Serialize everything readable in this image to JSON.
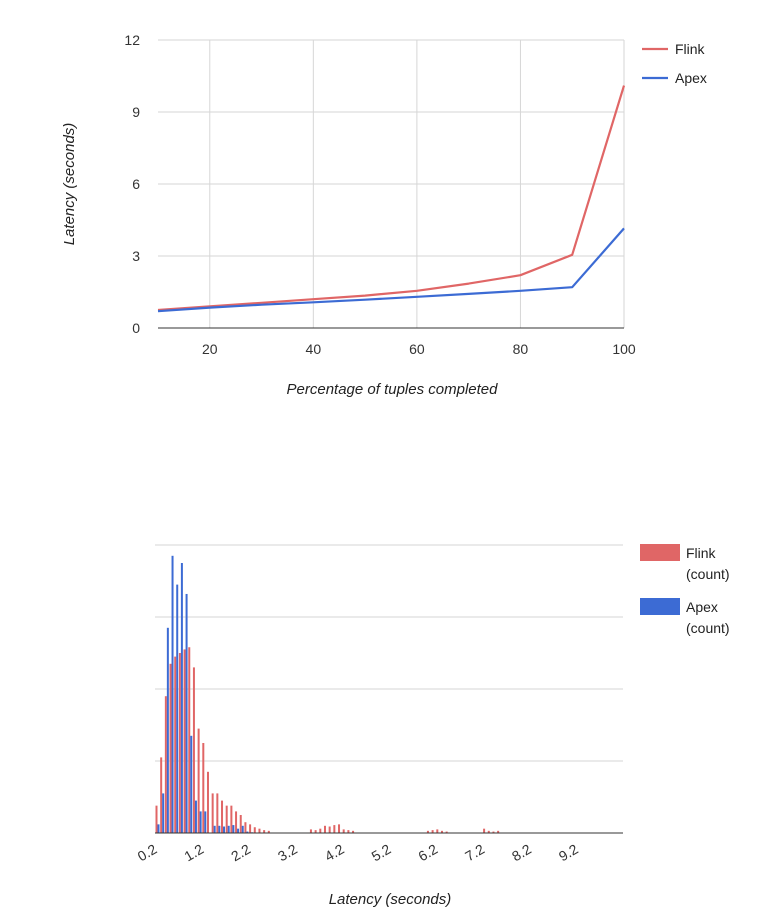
{
  "colors": {
    "flink": "#e06666",
    "apex": "#3c6bd4",
    "grid": "#d6d6d6",
    "baseline": "#333333"
  },
  "chart_data": [
    {
      "type": "line",
      "title": "",
      "xlabel": "Percentage of tuples completed",
      "ylabel": "Latency (seconds)",
      "xlim": [
        10,
        100
      ],
      "ylim": [
        0,
        12
      ],
      "x_ticks": [
        20,
        40,
        60,
        80,
        100
      ],
      "y_ticks": [
        0,
        3,
        6,
        9,
        12
      ],
      "grid": true,
      "legend_position": "right",
      "series": [
        {
          "name": "Flink",
          "color": "#e06666",
          "x": [
            10,
            20,
            30,
            40,
            50,
            60,
            70,
            80,
            90,
            100
          ],
          "y": [
            0.75,
            0.9,
            1.05,
            1.2,
            1.35,
            1.55,
            1.85,
            2.2,
            3.05,
            10.1
          ]
        },
        {
          "name": "Apex",
          "color": "#3c6bd4",
          "x": [
            10,
            20,
            30,
            40,
            50,
            60,
            70,
            80,
            90,
            100
          ],
          "y": [
            0.7,
            0.85,
            0.97,
            1.07,
            1.18,
            1.3,
            1.42,
            1.55,
            1.7,
            4.15
          ]
        }
      ]
    },
    {
      "type": "bar",
      "title": "",
      "xlabel": "Latency (seconds)",
      "ylabel": "",
      "x_ticks": [
        "0.2",
        "1.2",
        "2.2",
        "3.2",
        "4.2",
        "5.2",
        "6.2",
        "7.2",
        "8.2",
        "9.2"
      ],
      "xlim": [
        0.2,
        10.2
      ],
      "ylim": [
        0,
        400
      ],
      "y_gridlines": [
        0,
        100,
        200,
        300,
        400
      ],
      "y_tick_labels_shown": false,
      "grid": true,
      "legend_position": "right",
      "bin_start": 0.2,
      "bin_width": 0.1,
      "series": [
        {
          "name": "Flink\n(count)",
          "color": "#e06666",
          "values": [
            38,
            105,
            190,
            235,
            245,
            250,
            255,
            258,
            230,
            145,
            125,
            85,
            55,
            55,
            45,
            38,
            38,
            30,
            25,
            15,
            12,
            8,
            6,
            4,
            3,
            0,
            0,
            0,
            0,
            0,
            0,
            0,
            0,
            5,
            4,
            6,
            10,
            9,
            11,
            12,
            5,
            4,
            3,
            0,
            0,
            0,
            0,
            0,
            0,
            0,
            0,
            0,
            0,
            0,
            0,
            0,
            0,
            0,
            3,
            4,
            5,
            3,
            2,
            0,
            0,
            0,
            0,
            0,
            0,
            0,
            6,
            3,
            2,
            3
          ]
        },
        {
          "name": "Apex\n(count)",
          "color": "#3c6bd4",
          "values": [
            12,
            55,
            285,
            385,
            345,
            375,
            332,
            135,
            45,
            30,
            30,
            0,
            10,
            10,
            9,
            10,
            11,
            6,
            10,
            2,
            1,
            0,
            0,
            0,
            0,
            0,
            0,
            0,
            0,
            0,
            0,
            0,
            0,
            0,
            0,
            0,
            0,
            0,
            0,
            0,
            0,
            0,
            0,
            0,
            0,
            0,
            0,
            0,
            0,
            0,
            0,
            0,
            0,
            0,
            0,
            0,
            0,
            0,
            0,
            0,
            0,
            0,
            0,
            0,
            0,
            0,
            0,
            0,
            0,
            0,
            0,
            0,
            0,
            0
          ]
        }
      ]
    }
  ]
}
